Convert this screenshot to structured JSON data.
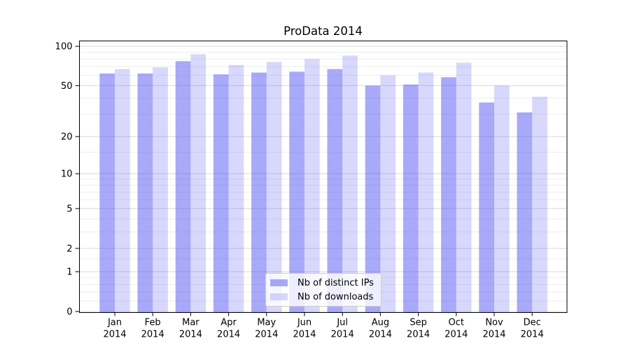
{
  "chart_data": {
    "type": "bar",
    "title": "ProData 2014",
    "categories": [
      "Jan",
      "Feb",
      "Mar",
      "Apr",
      "May",
      "Jun",
      "Jul",
      "Aug",
      "Sep",
      "Oct",
      "Nov",
      "Dec"
    ],
    "x_year_label": "2014",
    "series": [
      {
        "name": "Nb of distinct IPs",
        "color": "rgba(86,86,243,0.51)",
        "values": [
          62,
          62,
          77,
          61,
          63,
          64,
          67,
          50,
          51,
          58,
          37,
          31
        ]
      },
      {
        "name": "Nb of downloads",
        "color": "rgba(86,86,243,0.23)",
        "values": [
          67,
          69,
          87,
          72,
          76,
          80,
          85,
          60,
          63,
          75,
          50,
          41
        ]
      }
    ],
    "xlabel": "",
    "ylabel": "",
    "yscale": "log1p",
    "ylim": [
      0,
      107
    ],
    "yticks": [
      0,
      1,
      2,
      5,
      10,
      20,
      50,
      100
    ],
    "yticks_minor": [
      0.2,
      0.4,
      0.6,
      0.8,
      1.5,
      3,
      4,
      6,
      7,
      8,
      9,
      15,
      30,
      40,
      60,
      70,
      80,
      90
    ],
    "grid": true,
    "legend_position": "lower center",
    "colors": {
      "major_grid": "#d8d8d8",
      "minor_grid": "#ededed",
      "spine": "#000000",
      "tick_text": "#000000",
      "legend_border": "#cccccc",
      "legend_bg": "rgba(255,255,255,0.8)"
    }
  }
}
